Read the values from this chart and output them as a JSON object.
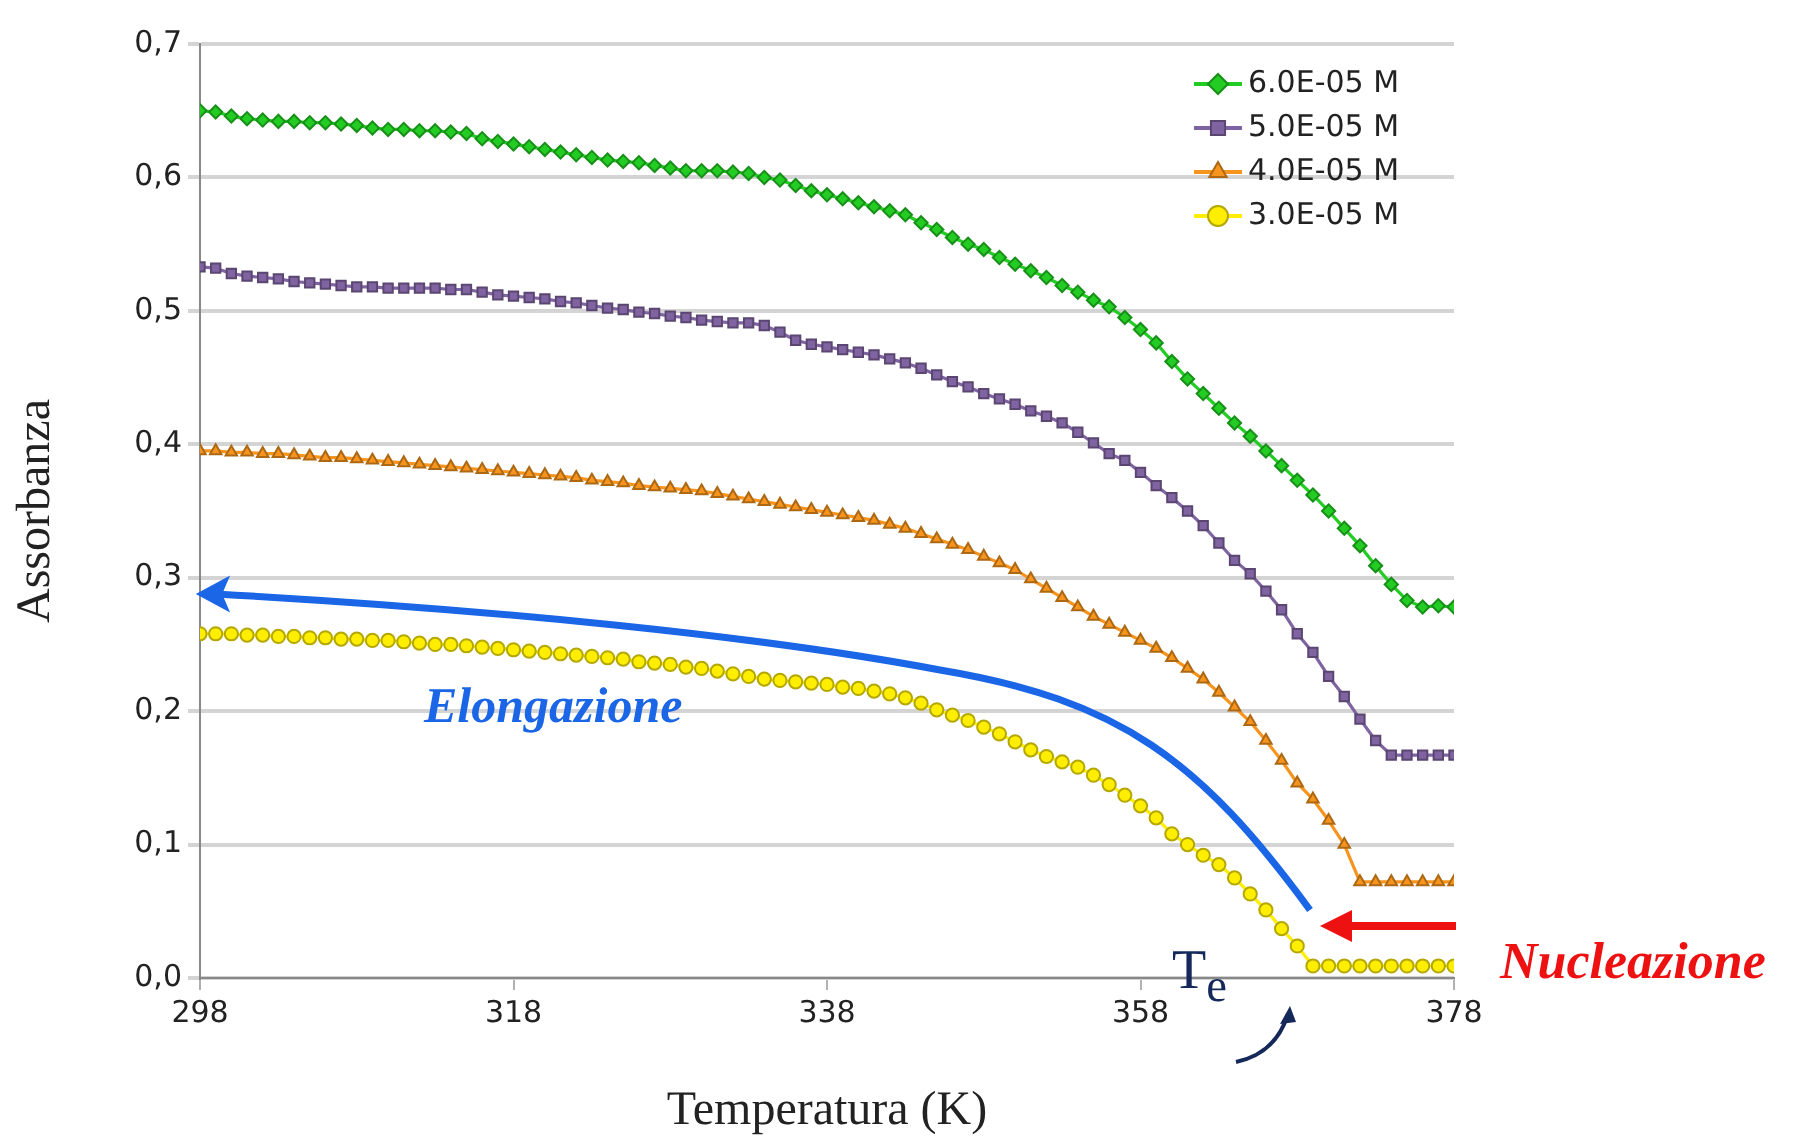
{
  "chart_data": {
    "type": "line",
    "xlabel": "Temperatura (K)",
    "ylabel": "Assorbanza",
    "x": [
      298,
      299,
      300,
      301,
      302,
      303,
      304,
      305,
      306,
      307,
      308,
      309,
      310,
      311,
      312,
      313,
      314,
      315,
      316,
      317,
      318,
      319,
      320,
      321,
      322,
      323,
      324,
      325,
      326,
      327,
      328,
      329,
      330,
      331,
      332,
      333,
      334,
      335,
      336,
      337,
      338,
      339,
      340,
      341,
      342,
      343,
      344,
      345,
      346,
      347,
      348,
      349,
      350,
      351,
      352,
      353,
      354,
      355,
      356,
      357,
      358,
      359,
      360,
      361,
      362,
      363,
      364,
      365,
      366,
      367,
      368,
      369,
      370,
      371,
      372,
      373,
      374,
      375,
      376,
      377,
      378
    ],
    "series": [
      {
        "name": "6.0E-05 M",
        "color": "#22cc22",
        "marker": "diamond",
        "values": [
          0.65,
          0.649,
          0.646,
          0.644,
          0.643,
          0.642,
          0.642,
          0.641,
          0.641,
          0.64,
          0.639,
          0.637,
          0.636,
          0.636,
          0.635,
          0.635,
          0.634,
          0.633,
          0.629,
          0.627,
          0.625,
          0.623,
          0.621,
          0.619,
          0.617,
          0.615,
          0.613,
          0.612,
          0.611,
          0.609,
          0.607,
          0.605,
          0.605,
          0.605,
          0.604,
          0.603,
          0.6,
          0.598,
          0.594,
          0.59,
          0.587,
          0.584,
          0.581,
          0.578,
          0.575,
          0.572,
          0.566,
          0.561,
          0.555,
          0.55,
          0.546,
          0.54,
          0.535,
          0.53,
          0.525,
          0.519,
          0.514,
          0.508,
          0.503,
          0.495,
          0.486,
          0.476,
          0.462,
          0.449,
          0.438,
          0.427,
          0.416,
          0.406,
          0.395,
          0.384,
          0.373,
          0.362,
          0.35,
          0.337,
          0.324,
          0.309,
          0.295,
          0.283,
          0.278,
          0.279,
          0.278
        ]
      },
      {
        "name": "5.0E-05 M",
        "color": "#8064a2",
        "marker": "square",
        "values": [
          0.533,
          0.532,
          0.528,
          0.526,
          0.525,
          0.524,
          0.522,
          0.521,
          0.52,
          0.519,
          0.518,
          0.518,
          0.517,
          0.517,
          0.517,
          0.517,
          0.516,
          0.516,
          0.514,
          0.512,
          0.511,
          0.51,
          0.509,
          0.507,
          0.506,
          0.504,
          0.502,
          0.501,
          0.499,
          0.498,
          0.496,
          0.495,
          0.493,
          0.492,
          0.491,
          0.491,
          0.489,
          0.484,
          0.478,
          0.475,
          0.473,
          0.471,
          0.469,
          0.467,
          0.464,
          0.461,
          0.457,
          0.452,
          0.447,
          0.443,
          0.438,
          0.434,
          0.43,
          0.425,
          0.421,
          0.416,
          0.409,
          0.401,
          0.393,
          0.388,
          0.379,
          0.369,
          0.36,
          0.35,
          0.339,
          0.326,
          0.313,
          0.303,
          0.29,
          0.276,
          0.258,
          0.244,
          0.226,
          0.211,
          0.194,
          0.178,
          0.167,
          0.167,
          0.167,
          0.167,
          0.167
        ]
      },
      {
        "name": "4.0E-05 M",
        "color": "#f7941d",
        "marker": "triangle",
        "values": [
          0.395,
          0.395,
          0.394,
          0.394,
          0.393,
          0.393,
          0.392,
          0.391,
          0.39,
          0.39,
          0.389,
          0.388,
          0.387,
          0.386,
          0.385,
          0.384,
          0.383,
          0.382,
          0.381,
          0.38,
          0.379,
          0.378,
          0.377,
          0.376,
          0.375,
          0.373,
          0.372,
          0.371,
          0.369,
          0.368,
          0.367,
          0.366,
          0.365,
          0.363,
          0.361,
          0.359,
          0.357,
          0.355,
          0.353,
          0.351,
          0.349,
          0.347,
          0.345,
          0.343,
          0.34,
          0.337,
          0.333,
          0.329,
          0.325,
          0.321,
          0.316,
          0.311,
          0.306,
          0.299,
          0.292,
          0.285,
          0.278,
          0.271,
          0.265,
          0.259,
          0.253,
          0.247,
          0.24,
          0.232,
          0.224,
          0.214,
          0.203,
          0.192,
          0.178,
          0.163,
          0.146,
          0.134,
          0.118,
          0.1,
          0.072,
          0.072,
          0.072,
          0.072,
          0.072,
          0.072,
          0.072
        ]
      },
      {
        "name": "3.0E-05 M",
        "color": "#ffee00",
        "marker": "circle",
        "values": [
          0.258,
          0.258,
          0.258,
          0.257,
          0.257,
          0.256,
          0.256,
          0.255,
          0.255,
          0.254,
          0.254,
          0.253,
          0.253,
          0.252,
          0.251,
          0.25,
          0.25,
          0.249,
          0.248,
          0.247,
          0.246,
          0.245,
          0.244,
          0.243,
          0.242,
          0.241,
          0.24,
          0.239,
          0.237,
          0.236,
          0.235,
          0.233,
          0.232,
          0.23,
          0.228,
          0.226,
          0.224,
          0.223,
          0.222,
          0.221,
          0.22,
          0.218,
          0.217,
          0.215,
          0.213,
          0.21,
          0.206,
          0.201,
          0.197,
          0.193,
          0.188,
          0.183,
          0.177,
          0.171,
          0.166,
          0.162,
          0.158,
          0.152,
          0.145,
          0.137,
          0.129,
          0.12,
          0.108,
          0.1,
          0.092,
          0.085,
          0.075,
          0.063,
          0.051,
          0.037,
          0.024,
          0.009,
          0.009,
          0.009,
          0.009,
          0.009,
          0.009,
          0.009,
          0.009,
          0.009,
          0.009
        ]
      }
    ],
    "xlim": [
      298,
      378
    ],
    "xticks": [
      298,
      318,
      338,
      358,
      378
    ],
    "ylim": [
      0,
      0.7
    ],
    "yticks": [
      {
        "value": 0,
        "label": "0,0"
      },
      {
        "value": 0.1,
        "label": "0,1"
      },
      {
        "value": 0.2,
        "label": "0,2"
      },
      {
        "value": 0.3,
        "label": "0,3"
      },
      {
        "value": 0.4,
        "label": "0,4"
      },
      {
        "value": 0.5,
        "label": "0,5"
      },
      {
        "value": 0.6,
        "label": "0,6"
      },
      {
        "value": 0.7,
        "label": "0,7"
      }
    ],
    "grid": "y",
    "legend": "top right",
    "annotations": [
      "Elongazione",
      "Nucleazione",
      "T$_{e}$"
    ]
  }
}
